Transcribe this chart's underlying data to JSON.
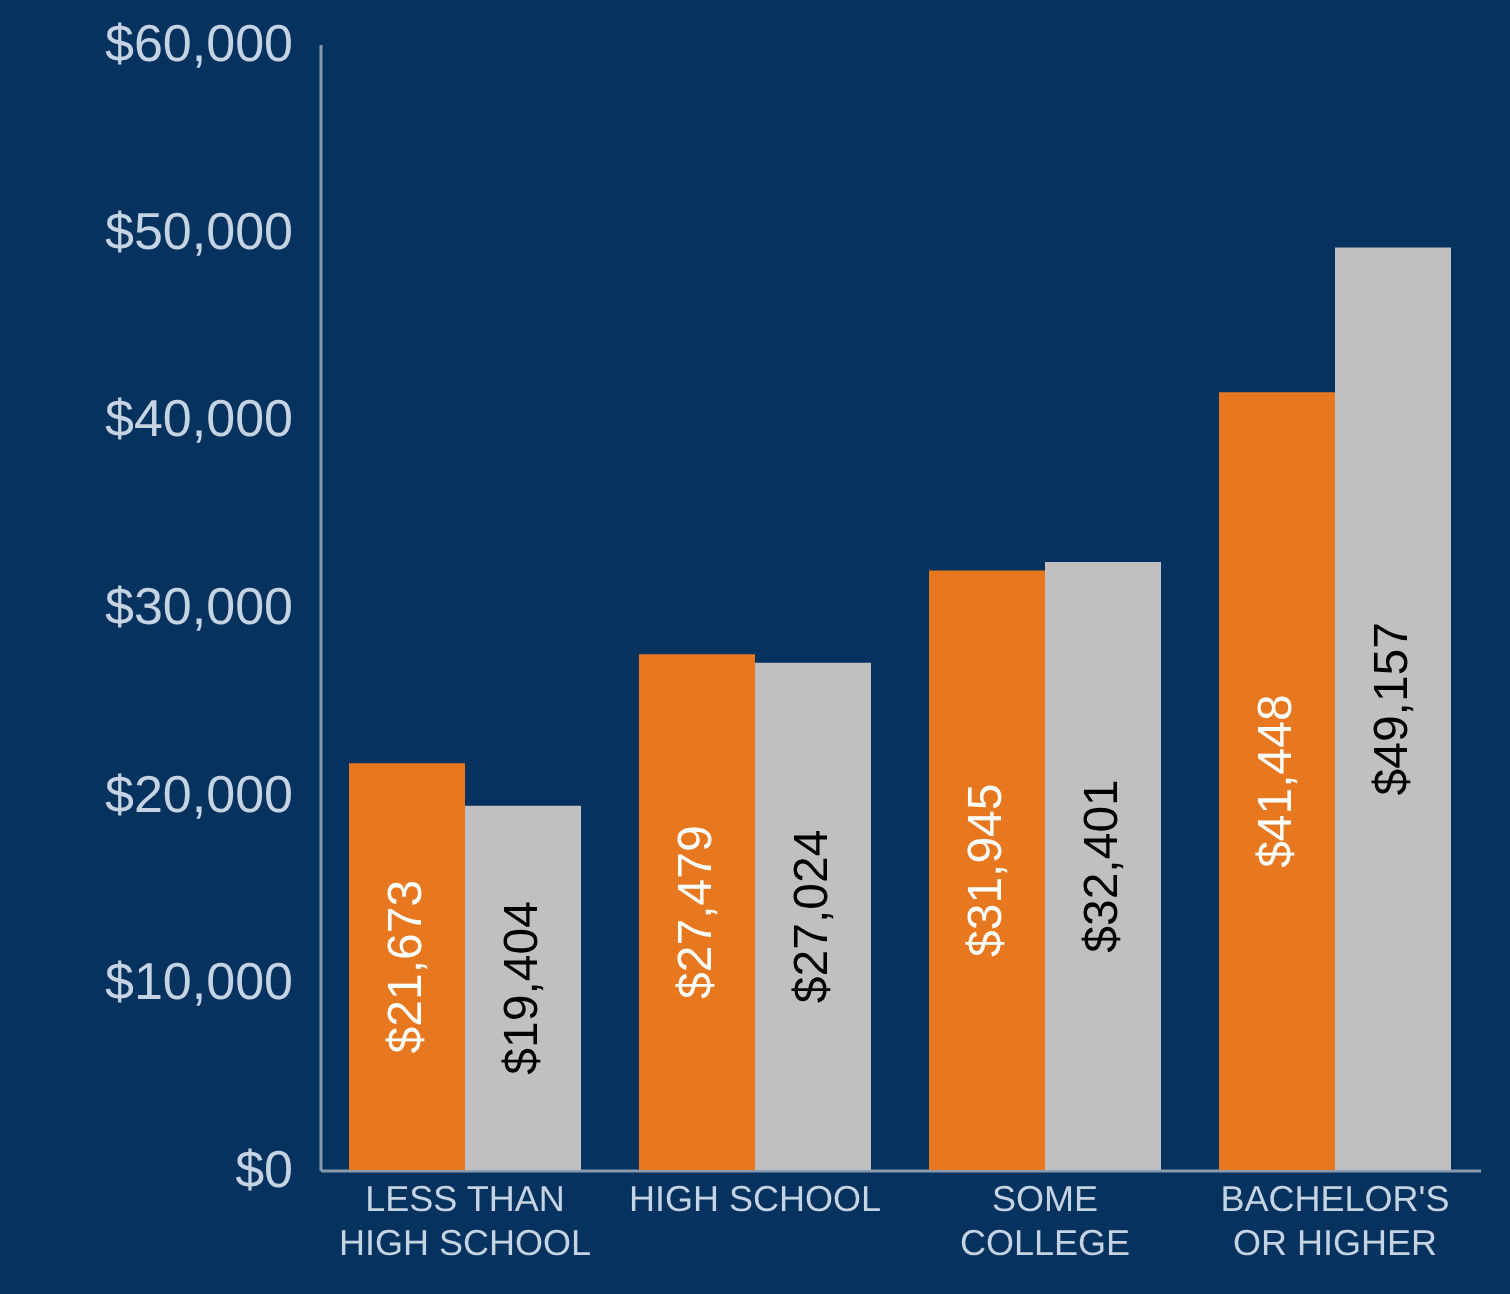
{
  "chart_data": {
    "type": "bar",
    "categories": [
      "LESS THAN\nHIGH SCHOOL",
      "HIGH SCHOOL",
      "SOME\nCOLLEGE",
      "BACHELOR'S\nOR HIGHER"
    ],
    "series": [
      {
        "color": "#e8781f",
        "values": [
          21673,
          27479,
          31945,
          41448
        ],
        "value_labels": [
          "$21,673",
          "$27,479",
          "$31,945",
          "$41,448"
        ]
      },
      {
        "color": "#c0c0c0",
        "values": [
          19404,
          27024,
          32401,
          49157
        ],
        "value_labels": [
          "$19,404",
          "$27,024",
          "$32,401",
          "$49,157"
        ]
      }
    ],
    "ylim": [
      0,
      60000
    ],
    "yticks": [
      {
        "value": 0,
        "label": "$0"
      },
      {
        "value": 10000,
        "label": "$10,000"
      },
      {
        "value": 20000,
        "label": "$20,000"
      },
      {
        "value": 30000,
        "label": "$30,000"
      },
      {
        "value": 40000,
        "label": "$40,000"
      },
      {
        "value": 50000,
        "label": "$50,000"
      },
      {
        "value": 60000,
        "label": "$60,000"
      }
    ],
    "grid": false,
    "legend": false
  }
}
